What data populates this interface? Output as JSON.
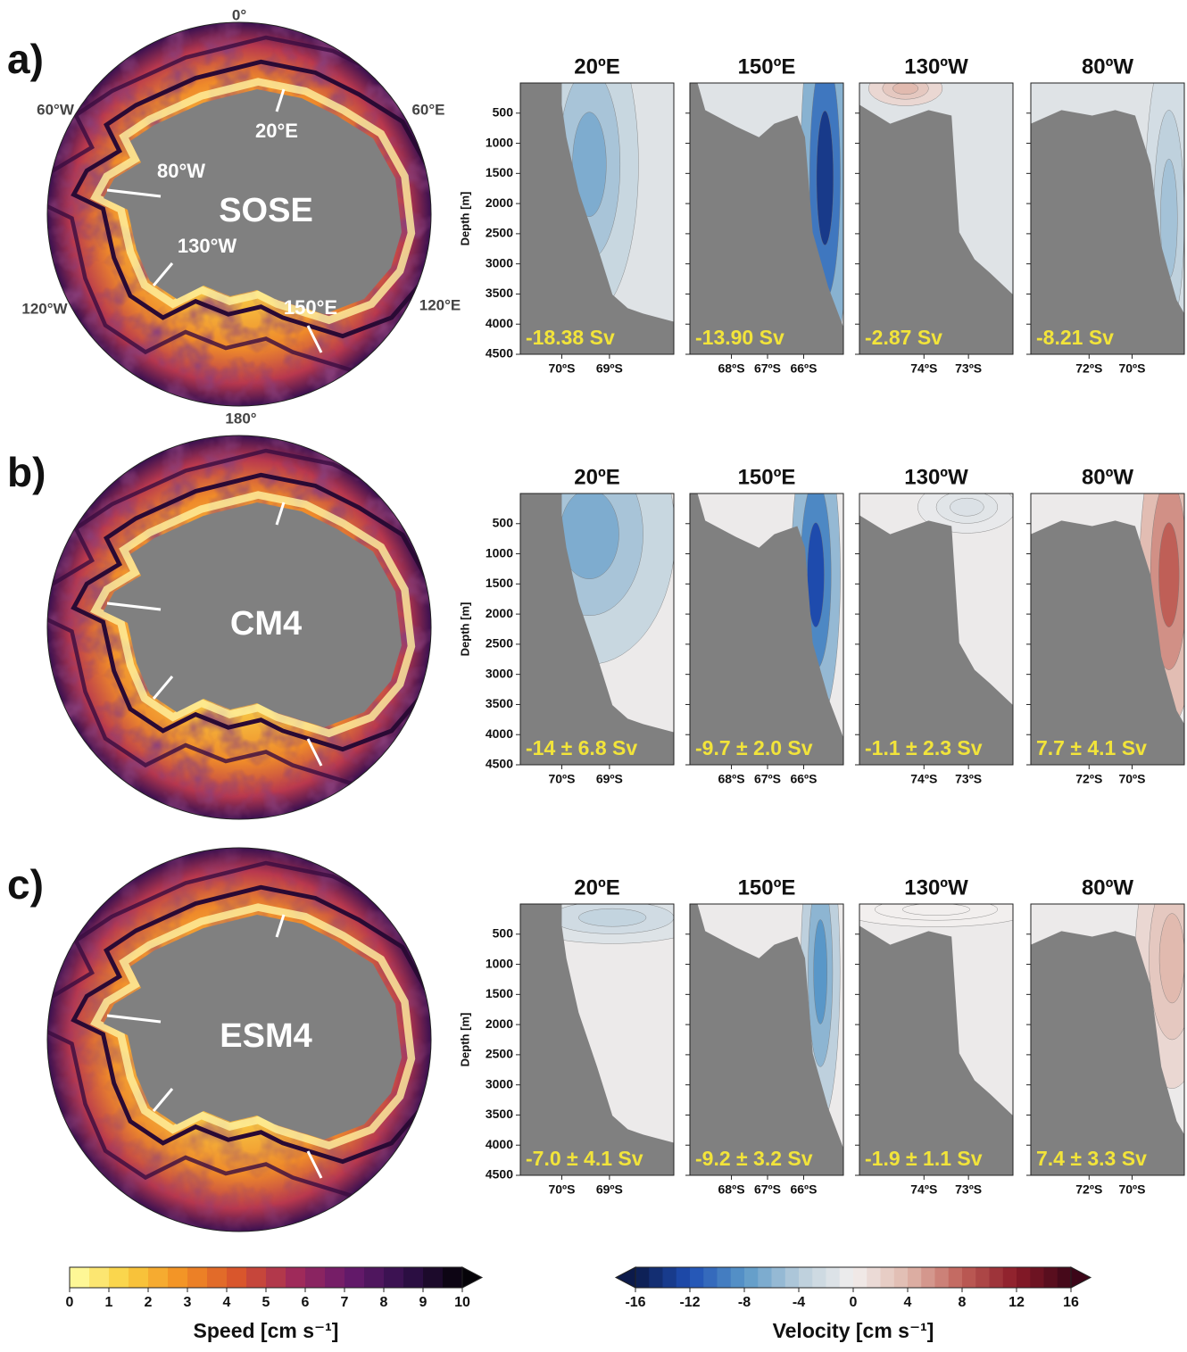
{
  "maps": {
    "lon_labels": [
      "0°",
      "60°E",
      "120°E",
      "180°",
      "120°W",
      "60°W"
    ],
    "section_labels": [
      "20°E",
      "80°W",
      "130°W",
      "150°E"
    ]
  },
  "rows": [
    {
      "label": "a)",
      "model": "SOSE",
      "transports": [
        "-18.38 Sv",
        "-13.90 Sv",
        "-2.87 Sv",
        "-8.21 Sv"
      ]
    },
    {
      "label": "b)",
      "model": "CM4",
      "transports": [
        "-14 ± 6.8 Sv",
        "-9.7 ± 2.0 Sv",
        "-1.1 ± 2.3 Sv",
        "7.7 ± 4.1 Sv"
      ]
    },
    {
      "label": "c)",
      "model": "ESM4",
      "transports": [
        "-7.0 ± 4.1 Sv",
        "-9.2 ± 3.2 Sv",
        "-1.9 ± 1.1 Sv",
        "7.4 ± 3.3 Sv"
      ]
    }
  ],
  "sections": [
    {
      "title": "20ºE",
      "xlim": [
        -70.87,
        -67.65
      ],
      "xticks": [
        {
          "value": -70,
          "label": "70ºS"
        },
        {
          "value": -69,
          "label": "69ºS"
        }
      ]
    },
    {
      "title": "150ºE",
      "xlim": [
        -69.15,
        -64.9
      ],
      "xticks": [
        {
          "value": -68,
          "label": "68ºS"
        },
        {
          "value": -67,
          "label": "67ºS"
        },
        {
          "value": -66,
          "label": "66ºS"
        }
      ]
    },
    {
      "title": "130ºW",
      "xlim": [
        -75.45,
        -72.0
      ],
      "xticks": [
        {
          "value": -74,
          "label": "74ºS"
        },
        {
          "value": -73,
          "label": "73ºS"
        }
      ]
    },
    {
      "title": "80ºW",
      "xlim": [
        -74.71,
        -67.57
      ],
      "xticks": [
        {
          "value": -72,
          "label": "72ºS"
        },
        {
          "value": -70,
          "label": "70ºS"
        }
      ]
    }
  ],
  "depth_axis": {
    "label": "Depth [m]",
    "ylim": [
      0,
      4500
    ],
    "yticks": [
      500,
      1000,
      1500,
      2000,
      2500,
      3000,
      3500,
      4000,
      4500
    ]
  },
  "colorbars": [
    {
      "label": "Speed [cm s⁻¹]",
      "lim": [
        0,
        10
      ],
      "ticks": [
        0,
        1,
        2,
        3,
        4,
        5,
        6,
        7,
        8,
        9,
        10
      ],
      "colors": [
        "#ffffa8",
        "#f9d040",
        "#f39024",
        "#d8542c",
        "#a02a5a",
        "#661a6c",
        "#30104a",
        "#050308"
      ]
    },
    {
      "label": "Velocity [cm s⁻¹]",
      "lim": [
        -16,
        16
      ],
      "ticks": [
        -16,
        -12,
        -8,
        -4,
        0,
        4,
        8,
        12,
        16
      ],
      "colors": [
        "#0c1a4a",
        "#1f4fb4",
        "#5a98c8",
        "#b8cddb",
        "#f2efee",
        "#e0b8ad",
        "#c06058",
        "#8a1a28",
        "#3c0618"
      ]
    }
  ]
}
